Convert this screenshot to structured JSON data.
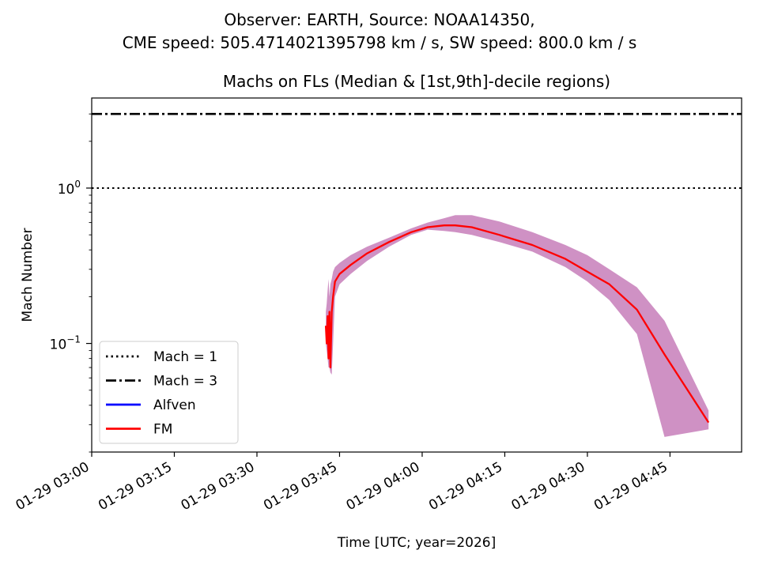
{
  "suptitle_line1": "Observer: EARTH, Source: NOAA14350,",
  "suptitle_line2": "CME speed: 505.4714021395798 km / s, SW speed: 800.0 km / s",
  "chart_data": {
    "type": "line",
    "title": "Machs on FLs (Median & [1st,9th]-decile regions)",
    "xlabel": "Time [UTC; year=2026]",
    "ylabel": "Mach Number",
    "yscale": "log",
    "xlim": [
      "2026-01-29 03:00",
      "2026-01-29 04:58"
    ],
    "ylim": [
      0.02,
      3.8
    ],
    "x_ticks": [
      {
        "t": "2026-01-29 03:00",
        "label": "01-29 03:00"
      },
      {
        "t": "2026-01-29 03:15",
        "label": "01-29 03:15"
      },
      {
        "t": "2026-01-29 03:30",
        "label": "01-29 03:30"
      },
      {
        "t": "2026-01-29 03:45",
        "label": "01-29 03:45"
      },
      {
        "t": "2026-01-29 04:00",
        "label": "01-29 04:00"
      },
      {
        "t": "2026-01-29 04:15",
        "label": "01-29 04:15"
      },
      {
        "t": "2026-01-29 04:30",
        "label": "01-29 04:30"
      },
      {
        "t": "2026-01-29 04:45",
        "label": "01-29 04:45"
      }
    ],
    "y_ticks": [
      {
        "value": 0.1,
        "base": "10",
        "exp": "−1"
      },
      {
        "value": 1,
        "base": "10",
        "exp": "0"
      }
    ],
    "reference_lines": [
      {
        "name": "Mach = 1",
        "value": 1,
        "style": "dotted",
        "color": "#000000"
      },
      {
        "name": "Mach = 3",
        "value": 3,
        "style": "dashdot",
        "color": "#000000"
      }
    ],
    "legend": {
      "position": "lower-left",
      "entries": [
        {
          "label": "Mach = 1",
          "color": "#000000",
          "style": "dotted"
        },
        {
          "label": "Mach = 3",
          "color": "#000000",
          "style": "dashdot"
        },
        {
          "label": "Alfven",
          "color": "#0000ff",
          "style": "solid"
        },
        {
          "label": "FM",
          "color": "#ff0000",
          "style": "solid"
        }
      ]
    },
    "band_color": "#cf91c4",
    "series": [
      {
        "name": "FM",
        "color": "#ff0000",
        "points": [
          {
            "t": "2026-01-29 03:42:30",
            "median": 0.13,
            "lo": 0.1,
            "hi": 0.16
          },
          {
            "t": "2026-01-29 03:42:40",
            "median": 0.1,
            "lo": 0.09,
            "hi": 0.18
          },
          {
            "t": "2026-01-29 03:42:50",
            "median": 0.15,
            "lo": 0.08,
            "hi": 0.22
          },
          {
            "t": "2026-01-29 03:43:00",
            "median": 0.08,
            "lo": 0.07,
            "hi": 0.26
          },
          {
            "t": "2026-01-29 03:43:10",
            "median": 0.16,
            "lo": 0.07,
            "hi": 0.2
          },
          {
            "t": "2026-01-29 03:43:20",
            "median": 0.07,
            "lo": 0.065,
            "hi": 0.24
          },
          {
            "t": "2026-01-29 03:43:35",
            "median": 0.16,
            "lo": 0.063,
            "hi": 0.26
          },
          {
            "t": "2026-01-29 03:43:50",
            "median": 0.2,
            "lo": 0.1,
            "hi": 0.29
          },
          {
            "t": "2026-01-29 03:44:10",
            "median": 0.25,
            "lo": 0.2,
            "hi": 0.31
          },
          {
            "t": "2026-01-29 03:45:00",
            "median": 0.28,
            "lo": 0.24,
            "hi": 0.33
          },
          {
            "t": "2026-01-29 03:47:00",
            "median": 0.32,
            "lo": 0.28,
            "hi": 0.37
          },
          {
            "t": "2026-01-29 03:50:00",
            "median": 0.38,
            "lo": 0.34,
            "hi": 0.42
          },
          {
            "t": "2026-01-29 03:54:00",
            "median": 0.45,
            "lo": 0.42,
            "hi": 0.48
          },
          {
            "t": "2026-01-29 03:58:00",
            "median": 0.52,
            "lo": 0.5,
            "hi": 0.55
          },
          {
            "t": "2026-01-29 04:01:00",
            "median": 0.56,
            "lo": 0.54,
            "hi": 0.6
          },
          {
            "t": "2026-01-29 04:04:00",
            "median": 0.575,
            "lo": 0.53,
            "hi": 0.64
          },
          {
            "t": "2026-01-29 04:06:00",
            "median": 0.575,
            "lo": 0.52,
            "hi": 0.67
          },
          {
            "t": "2026-01-29 04:09:00",
            "median": 0.56,
            "lo": 0.5,
            "hi": 0.67
          },
          {
            "t": "2026-01-29 04:14:00",
            "median": 0.5,
            "lo": 0.45,
            "hi": 0.61
          },
          {
            "t": "2026-01-29 04:20:00",
            "median": 0.43,
            "lo": 0.39,
            "hi": 0.52
          },
          {
            "t": "2026-01-29 04:26:00",
            "median": 0.35,
            "lo": 0.31,
            "hi": 0.43
          },
          {
            "t": "2026-01-29 04:30:00",
            "median": 0.29,
            "lo": 0.25,
            "hi": 0.37
          },
          {
            "t": "2026-01-29 04:34:00",
            "median": 0.24,
            "lo": 0.19,
            "hi": 0.3
          },
          {
            "t": "2026-01-29 04:39:00",
            "median": 0.165,
            "lo": 0.115,
            "hi": 0.23
          },
          {
            "t": "2026-01-29 04:44:00",
            "median": 0.085,
            "lo": 0.025,
            "hi": 0.14
          },
          {
            "t": "2026-01-29 04:52:00",
            "median": 0.031,
            "lo": 0.028,
            "hi": 0.037
          }
        ]
      }
    ]
  }
}
